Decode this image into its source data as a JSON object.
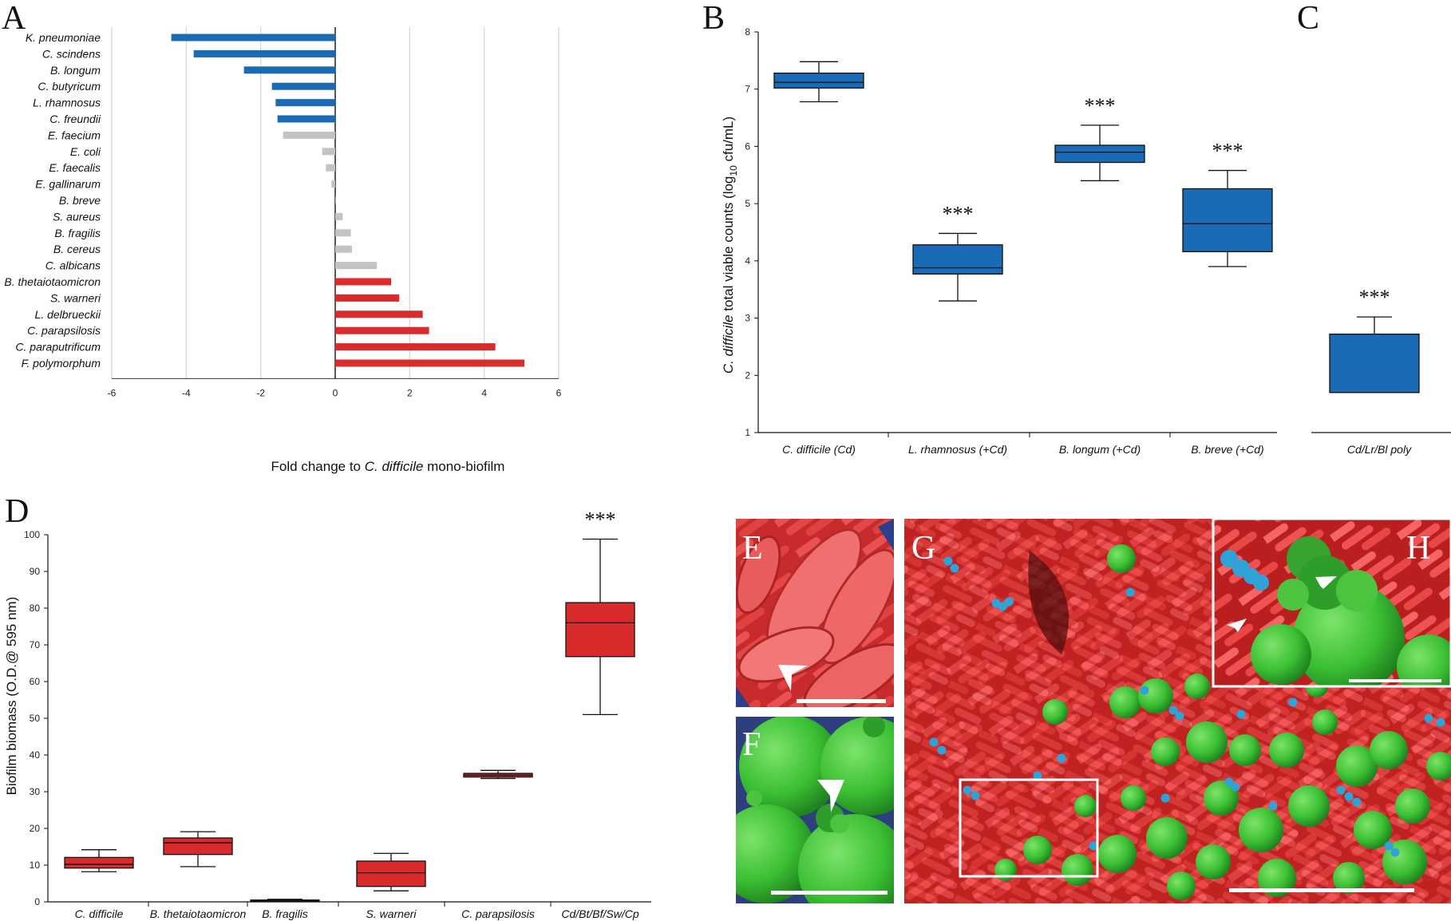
{
  "panels": {
    "A": "A",
    "B": "B",
    "C": "C",
    "D": "D",
    "E": "E",
    "F": "F",
    "G": "G",
    "H": "H"
  },
  "colors": {
    "blue": "#1a6bb5",
    "gray": "#c3c3c3",
    "red": "#d92b2b",
    "green": "#39c23a",
    "cyan": "#2ea3d8"
  },
  "chart_data": [
    {
      "id": "A",
      "type": "bar",
      "orientation": "horizontal",
      "xlabel_prefix": "Fold change to ",
      "xlabel_italic": "C. difficile",
      "xlabel_suffix": " mono-biofilm",
      "xlim": [
        -6,
        6
      ],
      "xticks": [
        "-6",
        "-4",
        "-2",
        "0",
        "2",
        "4",
        "6"
      ],
      "grid": true,
      "categories": [
        "K. pneumoniae",
        "C. scindens",
        "B. longum",
        "C. butyricum",
        "L. rhamnosus",
        "C. freundii",
        "E. faecium",
        "E. coli",
        "E. faecalis",
        "E. gallinarum",
        "B. breve",
        "S. aureus",
        "B. fragilis",
        "B. cereus",
        "C. albicans",
        "B. thetaiotaomicron",
        "S. warneri",
        "L. delbrueckii",
        "C. parapsilosis",
        "C. paraputrificum",
        "F. polymorphum"
      ],
      "values": [
        -4.4,
        -3.8,
        -2.45,
        -1.7,
        -1.6,
        -1.55,
        -1.4,
        -0.35,
        -0.25,
        -0.1,
        0,
        0.2,
        0.42,
        0.45,
        1.12,
        1.5,
        1.72,
        2.35,
        2.52,
        4.3,
        5.08
      ],
      "groups": [
        "blue",
        "blue",
        "blue",
        "blue",
        "blue",
        "blue",
        "gray",
        "gray",
        "gray",
        "gray",
        "gray",
        "gray",
        "gray",
        "gray",
        "gray",
        "red",
        "red",
        "red",
        "red",
        "red",
        "red"
      ]
    },
    {
      "id": "B",
      "type": "box",
      "ylabel_italic": "C. difficile",
      "ylabel_rest": " total viable counts (log",
      "ylabel_sub": "10",
      "ylabel_end": " cfu/mL)",
      "ylim": [
        1,
        8
      ],
      "yticks": [
        "1",
        "2",
        "3",
        "4",
        "5",
        "6",
        "7",
        "8"
      ],
      "categories": [
        "C. difficile (Cd)",
        "L. rhamnosus (+Cd)",
        "B. longum (+Cd)",
        "B. breve (+Cd)"
      ],
      "boxes": [
        {
          "min": 6.78,
          "q1": 7.02,
          "median": 7.12,
          "q3": 7.28,
          "max": 7.48,
          "sig": ""
        },
        {
          "min": 3.3,
          "q1": 3.77,
          "median": 3.88,
          "q3": 4.28,
          "max": 4.48,
          "sig": "***"
        },
        {
          "min": 5.4,
          "q1": 5.72,
          "median": 5.9,
          "q3": 6.02,
          "max": 6.37,
          "sig": "***"
        },
        {
          "min": 3.9,
          "q1": 4.16,
          "median": 4.65,
          "q3": 5.26,
          "max": 5.58,
          "sig": "***"
        }
      ]
    },
    {
      "id": "C",
      "type": "box",
      "ylim": [
        1,
        8
      ],
      "categories": [
        "Cd/Lr/Bl poly"
      ],
      "boxes": [
        {
          "min": 1.7,
          "q1": 1.7,
          "median": 1.7,
          "q3": 2.72,
          "max": 3.02,
          "sig": "***"
        }
      ]
    },
    {
      "id": "D",
      "type": "box",
      "ylabel": "Biofilm biomass (O.D.@ 595 nm)",
      "ylim": [
        0,
        100
      ],
      "yticks": [
        "0",
        "10",
        "20",
        "30",
        "40",
        "50",
        "60",
        "70",
        "80",
        "90",
        "100"
      ],
      "categories": [
        "C. difficile",
        "B. thetaiotaomicron",
        "B. fragilis",
        "S. warneri",
        "C. parapsilosis",
        "Cd/Bt/Bf/Sw/Cp"
      ],
      "boxes": [
        {
          "min": 8.2,
          "q1": 9.2,
          "median": 10.2,
          "q3": 12.1,
          "max": 14.2,
          "sig": ""
        },
        {
          "min": 9.6,
          "q1": 12.9,
          "median": 16.1,
          "q3": 17.4,
          "max": 19.1,
          "sig": ""
        },
        {
          "min": 0.2,
          "q1": 0.3,
          "median": 0.4,
          "q3": 0.5,
          "max": 0.7,
          "sig": ""
        },
        {
          "min": 3.0,
          "q1": 4.2,
          "median": 7.9,
          "q3": 11.1,
          "max": 13.2,
          "sig": ""
        },
        {
          "min": 33.6,
          "q1": 34.0,
          "median": 34.5,
          "q3": 35.0,
          "max": 35.8,
          "sig": ""
        },
        {
          "min": 51,
          "q1": 66.8,
          "median": 76,
          "q3": 81.5,
          "max": 98.8,
          "sig": "***"
        }
      ]
    }
  ]
}
